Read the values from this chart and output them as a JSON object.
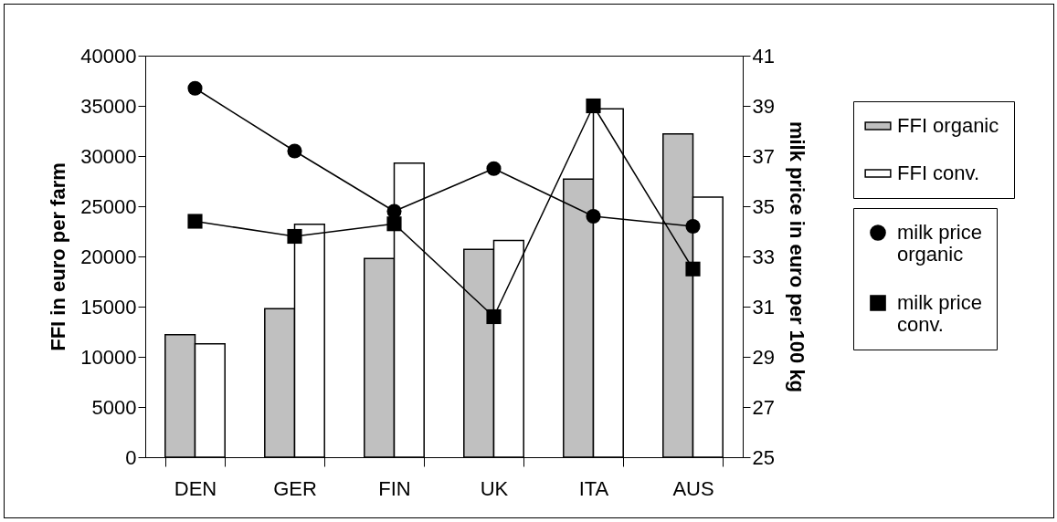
{
  "chart_data": {
    "type": "bar",
    "categories": [
      "DEN",
      "GER",
      "FIN",
      "UK",
      "ITA",
      "AUS"
    ],
    "ylabel": "FFI in euro per farm",
    "y2label": "milk price in euro per 100 kg",
    "ylim": [
      0,
      40000
    ],
    "yticks": [
      0,
      5000,
      10000,
      15000,
      20000,
      25000,
      30000,
      35000,
      40000
    ],
    "y2lim": [
      25,
      41
    ],
    "y2ticks": [
      25,
      27,
      29,
      31,
      33,
      35,
      37,
      39,
      41
    ],
    "legend": "right",
    "grid": false,
    "series": [
      {
        "name": "FFI organic",
        "color": "#c0c0c0",
        "values": [
          12200,
          14800,
          19800,
          20700,
          27700,
          32200
        ]
      },
      {
        "name": "FFI conv.",
        "color": "#ffffff",
        "values": [
          11300,
          23200,
          29300,
          21600,
          34700,
          25900
        ]
      },
      {
        "name": "milk price organic",
        "type": "line",
        "axis": "y2",
        "marker": "circle",
        "color": "#000000",
        "values": [
          39.7,
          37.2,
          34.8,
          36.5,
          34.6,
          34.2
        ]
      },
      {
        "name": "milk price conv.",
        "type": "line",
        "axis": "y2",
        "marker": "square",
        "color": "#000000",
        "values": [
          34.4,
          33.8,
          34.3,
          30.6,
          39.0,
          32.5
        ]
      }
    ]
  }
}
